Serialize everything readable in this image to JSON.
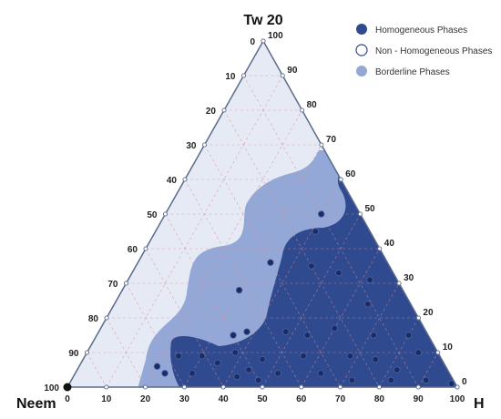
{
  "chart_data": {
    "type": "scatter",
    "subtype": "ternary",
    "vertex_labels": {
      "top": "Tw 20",
      "left": "Neem",
      "right": "H"
    },
    "axes": {
      "bottom_ticks": [
        "0",
        "10",
        "20",
        "30",
        "40",
        "50",
        "60",
        "70",
        "80",
        "90",
        "100"
      ],
      "left_ticks": [
        "0",
        "10",
        "20",
        "30",
        "40",
        "50",
        "60",
        "70",
        "80",
        "90",
        "100"
      ],
      "right_ticks": [
        "100",
        "90",
        "80",
        "70",
        "60",
        "50",
        "40",
        "30",
        "20",
        "10",
        "0"
      ]
    },
    "grid": true,
    "legend": {
      "placement": "top-right",
      "entries": [
        {
          "name": "Homogeneous Phases",
          "color": "#2f4a8e"
        },
        {
          "name": "Non - Homogeneous Phases",
          "color": "#e9edf6"
        },
        {
          "name": "Borderline Phases",
          "color": "#93a8d6"
        }
      ]
    },
    "colors": {
      "homogeneous": "#2f4a8e",
      "non_homogeneous": "#e6eaf5",
      "borderline": "#93a8d6",
      "frame": "#5b6a8c",
      "grid": "#d98c96"
    },
    "series": [
      {
        "name": "Homogeneous Phases",
        "points": [
          {
            "h": 40,
            "tw": 50
          },
          {
            "h": 41,
            "tw": 45
          },
          {
            "h": 34,
            "tw": 36
          },
          {
            "h": 45,
            "tw": 35
          },
          {
            "h": 53,
            "tw": 33
          },
          {
            "h": 62,
            "tw": 31
          },
          {
            "h": 65,
            "tw": 24
          },
          {
            "h": 30,
            "tw": 28
          },
          {
            "h": 38,
            "tw": 16
          },
          {
            "h": 35,
            "tw": 15
          },
          {
            "h": 48,
            "tw": 16
          },
          {
            "h": 54,
            "tw": 15
          },
          {
            "h": 60,
            "tw": 17
          },
          {
            "h": 71,
            "tw": 15
          },
          {
            "h": 80,
            "tw": 15
          },
          {
            "h": 38,
            "tw": 10
          },
          {
            "h": 46,
            "tw": 8
          },
          {
            "h": 56,
            "tw": 9
          },
          {
            "h": 68,
            "tw": 9
          },
          {
            "h": 75,
            "tw": 8
          },
          {
            "h": 82,
            "tw": 5
          },
          {
            "h": 85,
            "tw": 10
          },
          {
            "h": 24,
            "tw": 9
          },
          {
            "h": 30,
            "tw": 9
          },
          {
            "h": 35,
            "tw": 7
          },
          {
            "h": 44,
            "tw": 5
          },
          {
            "h": 52,
            "tw": 4
          },
          {
            "h": 63,
            "tw": 4
          },
          {
            "h": 72,
            "tw": 2
          },
          {
            "h": 82,
            "tw": 2
          },
          {
            "h": 91,
            "tw": 2
          },
          {
            "h": 98,
            "tw": 1
          },
          {
            "h": 23,
            "tw": 4
          },
          {
            "h": 30,
            "tw": 4
          },
          {
            "h": 42,
            "tw": 3
          },
          {
            "h": 48,
            "tw": 2
          },
          {
            "h": 20,
            "tw": 6
          }
        ]
      }
    ]
  }
}
